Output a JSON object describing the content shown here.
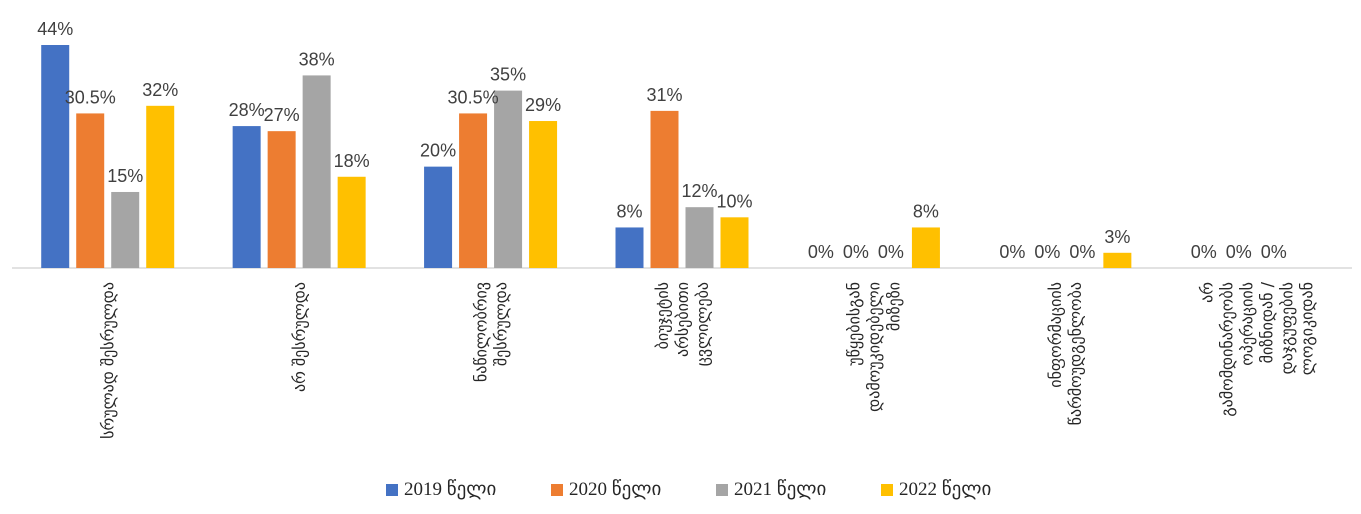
{
  "chart_data": {
    "type": "bar",
    "title": "",
    "xlabel": "",
    "ylabel": "",
    "ylim": [
      0,
      44
    ],
    "grid": false,
    "legend_position": "bottom",
    "categories": [
      "სრულად შესრულდა",
      "არ შესრულდა",
      "ნაწილობრივ შესრულდა",
      "ბიუჯეტის არსებითი ცვლილება",
      "უწყებისგან დამოუკიდებელი მიზეზი",
      "ინფორმაციის წარმოუდგენლობა",
      "არ გამომდინარეობს ოპერაციის მიზნიდან / დაჯგუფების ლოგიკიდან"
    ],
    "series": [
      {
        "name": "2019 წელი",
        "color": "#4472C4",
        "values": [
          44,
          28,
          20,
          8,
          0,
          0,
          0
        ],
        "labels": [
          "44%",
          "28%",
          "20%",
          "8%",
          "0%",
          "0%",
          "0%"
        ]
      },
      {
        "name": "2020 წელი",
        "color": "#ED7D31",
        "values": [
          30.5,
          27,
          30.5,
          31,
          0,
          0,
          0
        ],
        "labels": [
          "30.5%",
          "27%",
          "30.5%",
          "31%",
          "0%",
          "0%",
          "0%"
        ]
      },
      {
        "name": "2021 წელი",
        "color": "#A5A5A5",
        "values": [
          15,
          38,
          35,
          12,
          0,
          0,
          0
        ],
        "labels": [
          "15%",
          "38%",
          "35%",
          "12%",
          "0%",
          "0%",
          "0%"
        ]
      },
      {
        "name": "2022 წელი",
        "color": "#FFC000",
        "values": [
          32,
          18,
          29,
          10,
          8,
          3,
          null
        ],
        "labels": [
          "32%",
          "18%",
          "29%",
          "10%",
          "8%",
          "3%",
          ""
        ]
      }
    ]
  }
}
